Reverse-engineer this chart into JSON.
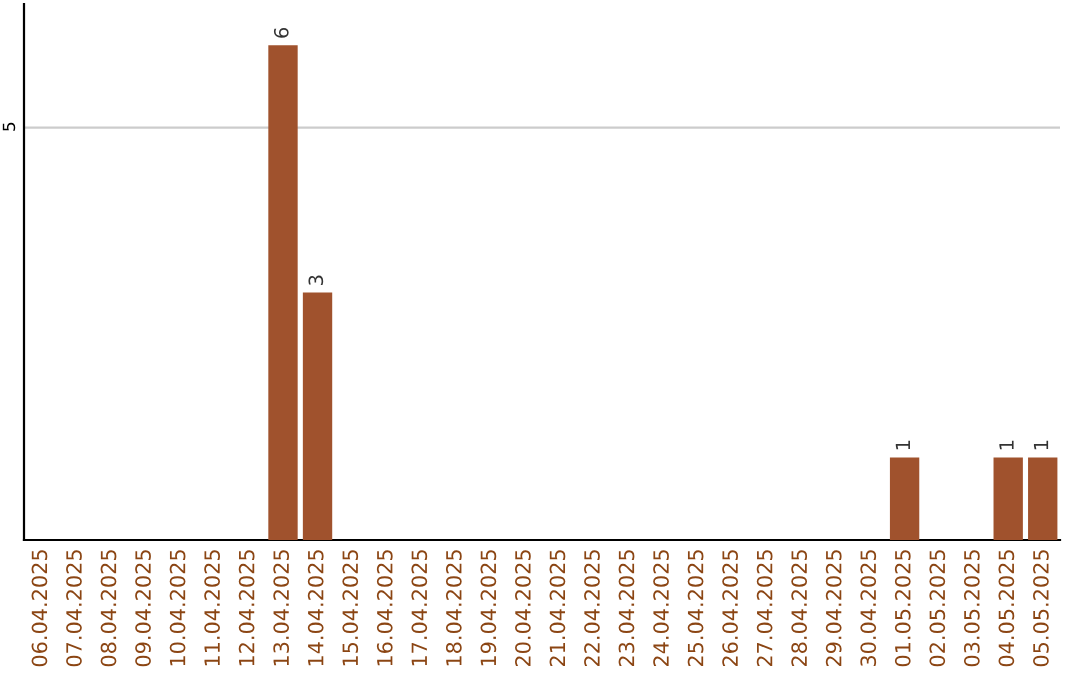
{
  "chart_data": {
    "type": "bar",
    "categories": [
      "06.04.2025",
      "07.04.2025",
      "08.04.2025",
      "09.04.2025",
      "10.04.2025",
      "11.04.2025",
      "12.04.2025",
      "13.04.2025",
      "14.04.2025",
      "15.04.2025",
      "16.04.2025",
      "17.04.2025",
      "18.04.2025",
      "19.04.2025",
      "20.04.2025",
      "21.04.2025",
      "22.04.2025",
      "23.04.2025",
      "24.04.2025",
      "25.04.2025",
      "26.04.2025",
      "27.04.2025",
      "28.04.2025",
      "29.04.2025",
      "30.04.2025",
      "01.05.2025",
      "02.05.2025",
      "03.05.2025",
      "04.05.2025",
      "05.05.2025"
    ],
    "values": [
      0,
      0,
      0,
      0,
      0,
      0,
      0,
      6,
      3,
      0,
      0,
      0,
      0,
      0,
      0,
      0,
      0,
      0,
      0,
      0,
      0,
      0,
      0,
      0,
      0,
      1,
      0,
      0,
      1,
      1
    ],
    "color": "#a0522d",
    "value_labels": [
      null,
      null,
      null,
      null,
      null,
      null,
      null,
      "6",
      "3",
      null,
      null,
      null,
      null,
      null,
      null,
      null,
      null,
      null,
      null,
      null,
      null,
      null,
      null,
      null,
      null,
      "1",
      null,
      null,
      "1",
      "1"
    ],
    "ylim": [
      0,
      6.5
    ],
    "yticks": [
      5
    ],
    "grid": "y"
  }
}
